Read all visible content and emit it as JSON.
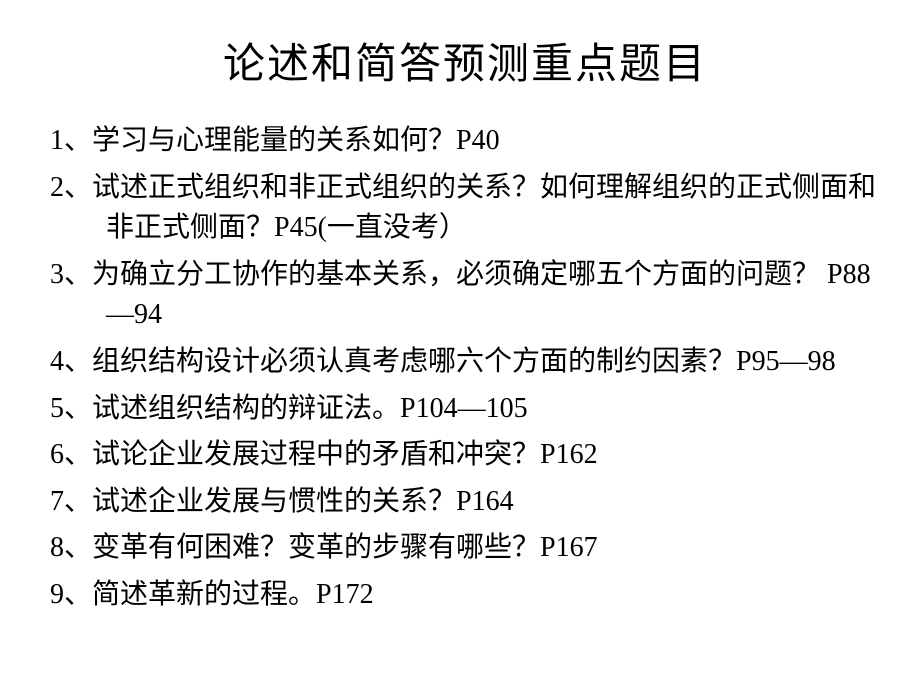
{
  "title": "论述和简答预测重点题目",
  "title_fontsize": 42,
  "body_fontsize": 28,
  "text_color": "#000000",
  "background_color": "#ffffff",
  "font_family": "SimSun",
  "items": [
    {
      "num": "1、",
      "text": "学习与心理能量的关系如何？P40"
    },
    {
      "num": "2、",
      "text": "试述正式组织和非正式组织的关系？如何理解组织的正式侧面和非正式侧面？P45(一直没考）"
    },
    {
      "num": "3、",
      "text": "为确立分工协作的基本关系，必须确定哪五个方面的问题？ P88—94"
    },
    {
      "num": "4、",
      "text": "组织结构设计必须认真考虑哪六个方面的制约因素？P95—98"
    },
    {
      "num": "5、",
      "text": "试述组织结构的辩证法。P104—105"
    },
    {
      "num": "6、",
      "text": "试论企业发展过程中的矛盾和冲突？P162"
    },
    {
      "num": "7、",
      "text": "试述企业发展与惯性的关系？P164"
    },
    {
      "num": "8、",
      "text": "变革有何困难？变革的步骤有哪些？P167"
    },
    {
      "num": "9、",
      "text": "简述革新的过程。P172"
    }
  ]
}
